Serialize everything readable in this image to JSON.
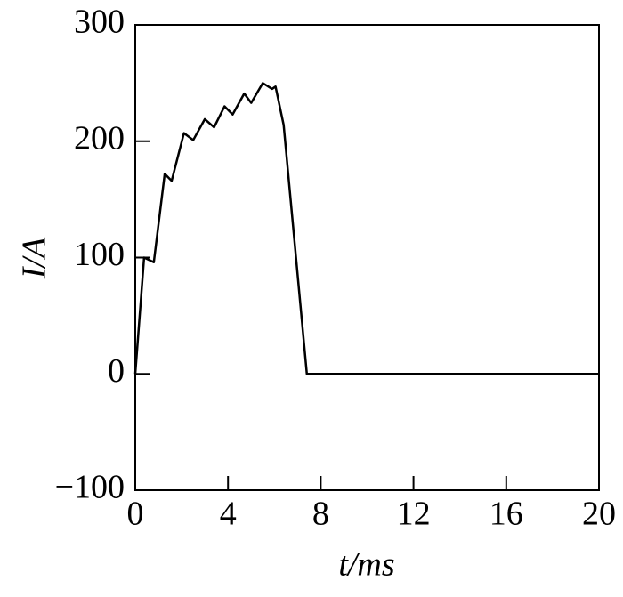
{
  "chart_data": {
    "type": "line",
    "x_label": "t/ms",
    "y_label": "I/A",
    "x": [
      0,
      0.38,
      0.8,
      1.27,
      1.57,
      2.1,
      2.5,
      3.0,
      3.4,
      3.85,
      4.2,
      4.7,
      5.0,
      5.5,
      5.9,
      6.05,
      6.4,
      7.4,
      20
    ],
    "series": [
      {
        "color": "#000000",
        "values": [
          0,
          100,
          96,
          172,
          166,
          207,
          201,
          219,
          212,
          230,
          223,
          241,
          233,
          250,
          245,
          247,
          214,
          0,
          0
        ]
      }
    ],
    "xlim": [
      0,
      20
    ],
    "xticks": [
      0,
      4,
      8,
      12,
      16,
      20
    ],
    "ylim": [
      -100,
      300
    ],
    "yticks": [
      {
        "value": -100,
        "label": "−100"
      },
      0,
      100,
      200,
      300
    ],
    "grid": false
  }
}
